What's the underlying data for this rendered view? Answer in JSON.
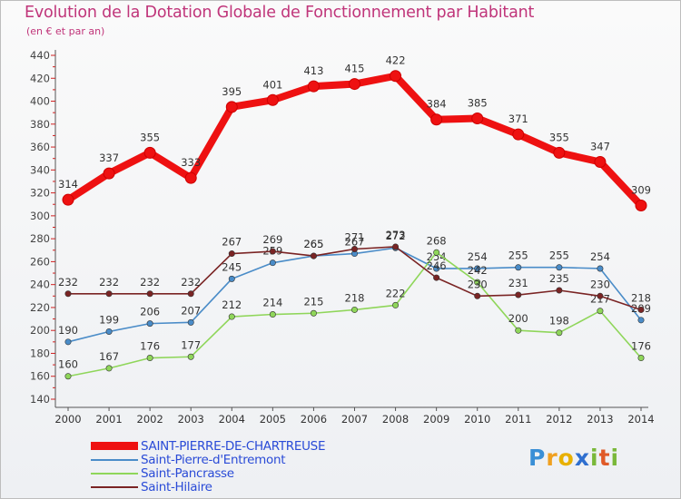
{
  "title": "Evolution de la Dotation Globale de Fonctionnement par Habitant",
  "subtitle": "(en € et par an)",
  "logo": {
    "text": "Proxiti",
    "p": "P",
    "r": "r",
    "o": "o",
    "x": "x",
    "i": "i",
    "t": "t",
    "i2": "i"
  },
  "chart_data": {
    "type": "line",
    "title": "Evolution de la Dotation Globale de Fonctionnement par Habitant",
    "subtitle": "(en € et par an)",
    "xlabel": "",
    "ylabel": "",
    "ylim": [
      140,
      440
    ],
    "y_ticks": [
      140,
      160,
      180,
      200,
      220,
      240,
      260,
      280,
      300,
      320,
      340,
      360,
      380,
      400,
      420,
      440
    ],
    "categories": [
      "2000",
      "2001",
      "2002",
      "2003",
      "2004",
      "2005",
      "2006",
      "2007",
      "2008",
      "2009",
      "2010",
      "2011",
      "2012",
      "2013",
      "2014"
    ],
    "grid": false,
    "legend_position": "bottom-left",
    "series": [
      {
        "name": "SAINT-PIERRE-DE-CHARTREUSE",
        "color": "#ee1111",
        "values": [
          314,
          337,
          355,
          333,
          395,
          401,
          413,
          415,
          422,
          384,
          385,
          371,
          355,
          347,
          309
        ]
      },
      {
        "name": "Saint-Pierre-d'Entremont",
        "color": "#4a8cc8",
        "values": [
          190,
          199,
          206,
          207,
          245,
          259,
          265,
          267,
          272,
          254,
          254,
          255,
          255,
          254,
          209
        ]
      },
      {
        "name": "Saint-Pancrasse",
        "color": "#8fd65a",
        "values": [
          160,
          167,
          176,
          177,
          212,
          214,
          215,
          218,
          222,
          268,
          242,
          200,
          198,
          217,
          176
        ]
      },
      {
        "name": "Saint-Hilaire",
        "color": "#7a2424",
        "values": [
          232,
          232,
          232,
          232,
          267,
          269,
          265,
          271,
          273,
          246,
          230,
          231,
          235,
          230,
          218
        ]
      }
    ]
  }
}
